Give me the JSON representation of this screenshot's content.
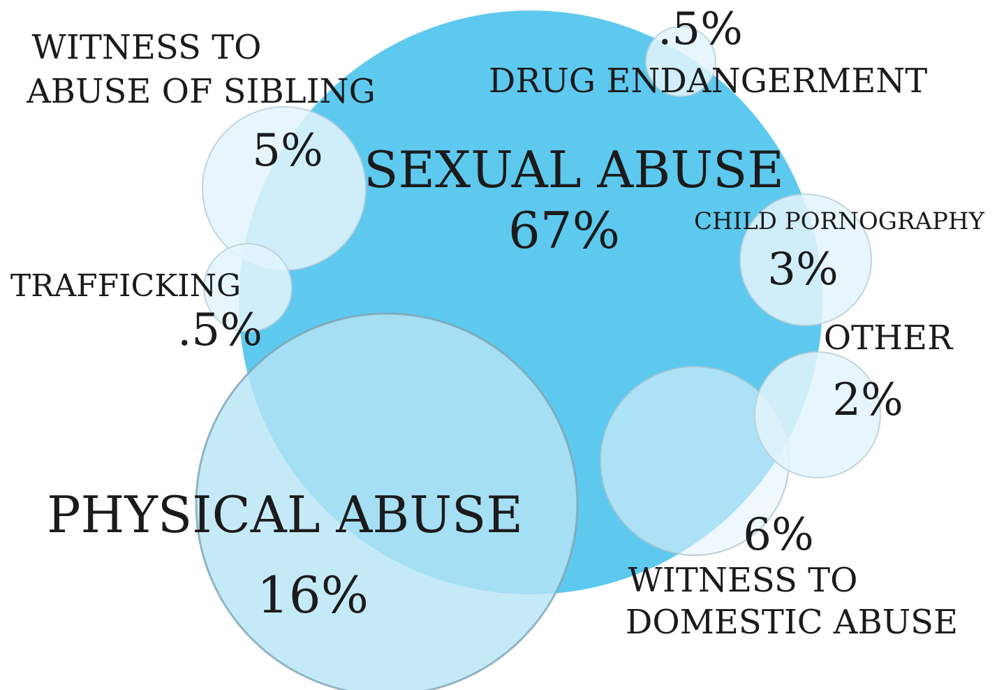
{
  "chart_data": {
    "type": "bubble",
    "unit": "%",
    "categories": [
      {
        "name": "SEXUAL ABUSE",
        "label_lines": [
          "SEXUAL ABUSE"
        ],
        "value_label": "67%",
        "value": 67,
        "color": "#5ec9ee"
      },
      {
        "name": "PHYSICAL ABUSE",
        "label_lines": [
          "PHYSICAL ABUSE"
        ],
        "value_label": "16%",
        "value": 16,
        "color": "#b6e5f5"
      },
      {
        "name": "WITNESS TO DOMESTIC ABUSE",
        "label_lines": [
          "WITNESS TO",
          "DOMESTIC ABUSE"
        ],
        "value_label": "6%",
        "value": 6,
        "color": "#e3f4fb"
      },
      {
        "name": "WITNESS TO ABUSE OF SIBLING",
        "label_lines": [
          "WITNESS TO",
          "ABUSE OF SIBLING"
        ],
        "value_label": "5%",
        "value": 5,
        "color": "#e3f4fb"
      },
      {
        "name": "CHILD PORNOGRAPHY",
        "label_lines": [
          "CHILD PORNOGRAPHY"
        ],
        "value_label": "3%",
        "value": 3,
        "color": "#e3f4fb"
      },
      {
        "name": "OTHER",
        "label_lines": [
          "OTHER"
        ],
        "value_label": "2%",
        "value": 2,
        "color": "#e3f4fb"
      },
      {
        "name": "TRAFFICKING",
        "label_lines": [
          "TRAFFICKING"
        ],
        "value_label": ".5%",
        "value": 0.5,
        "color": "#e3f4fb"
      },
      {
        "name": "DRUG ENDANGERMENT",
        "label_lines": [
          "DRUG ENDANGERMENT"
        ],
        "value_label": ".5%",
        "value": 0.5,
        "color": "#e3f4fb"
      }
    ]
  }
}
